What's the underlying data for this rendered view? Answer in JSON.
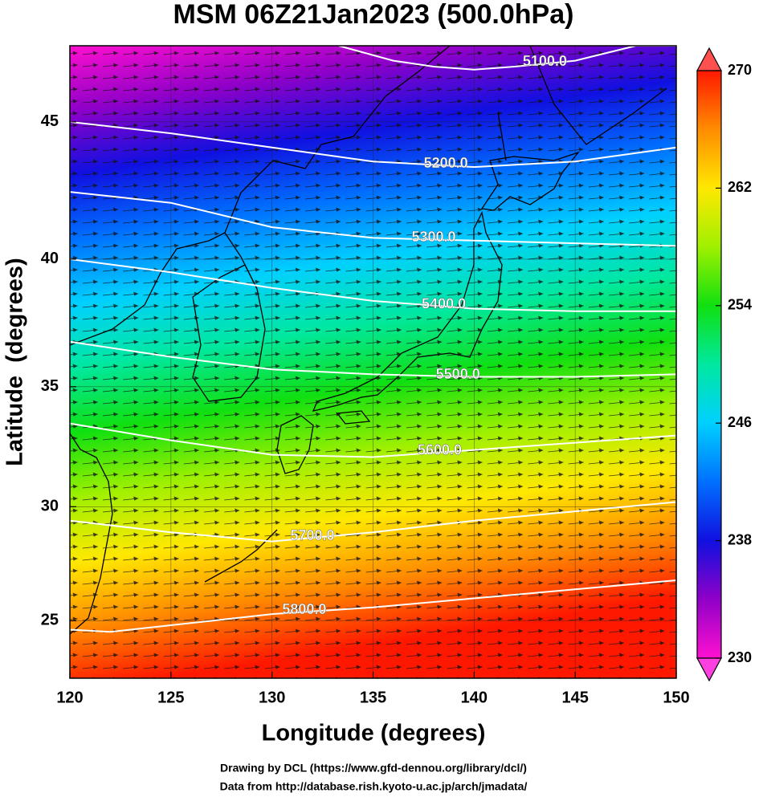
{
  "chart_data": {
    "type": "map",
    "title": "MSM 06Z21Jan2023 (500.0hPa)",
    "x_label": "Longitude (degrees)",
    "y_label": "Latitude  (degrees)",
    "projection": "mercator",
    "xlim": [
      120,
      150
    ],
    "ylim": [
      22.4,
      47.6
    ],
    "xticks": [
      120,
      125,
      130,
      135,
      140,
      145,
      150
    ],
    "yticks": [
      25,
      30,
      35,
      40,
      45
    ],
    "grid": true,
    "contour_color": "#ffffff",
    "contours": [
      {
        "level": {
          "value": 5100,
          "label": "5100.0"
        },
        "lon": [
          133.3,
          136,
          138,
          140,
          142,
          145,
          148,
          150
        ],
        "lat": [
          47.6,
          47.1,
          46.9,
          46.8,
          46.9,
          47.1,
          47.6,
          47.6
        ]
      },
      {
        "level": {
          "value": 5200,
          "label": "5200.0"
        },
        "lon": [
          120,
          125,
          130,
          135,
          140,
          145,
          150
        ],
        "lat": [
          45,
          44.6,
          44.1,
          43.6,
          43.4,
          43.6,
          44.1
        ]
      },
      {
        "level": {
          "value": 5300,
          "label": "5300.0"
        },
        "lon": [
          120,
          125,
          130,
          135,
          140,
          145,
          150
        ],
        "lat": [
          42.5,
          42.1,
          41.2,
          40.8,
          40.7,
          40.6,
          40.5
        ]
      },
      {
        "level": {
          "value": 5400,
          "label": "5400.0"
        },
        "lon": [
          120,
          125,
          130,
          135,
          140,
          145,
          150
        ],
        "lat": [
          40,
          39.5,
          38.9,
          38.4,
          38.1,
          38,
          38
        ]
      },
      {
        "level": {
          "value": 5500,
          "label": "5500.0"
        },
        "lon": [
          120,
          125,
          130,
          135,
          140,
          145,
          150
        ],
        "lat": [
          36.8,
          36.2,
          35.7,
          35.5,
          35.4,
          35.4,
          35.5
        ]
      },
      {
        "level": {
          "value": 5600,
          "label": "5600.0"
        },
        "lon": [
          120,
          125,
          130,
          135,
          140,
          145,
          150
        ],
        "lat": [
          33.5,
          32.8,
          32.2,
          32.1,
          32.4,
          32.7,
          33
        ]
      },
      {
        "level": {
          "value": 5700,
          "label": "5700.0"
        },
        "lon": [
          120,
          125,
          130,
          135,
          140,
          145,
          150
        ],
        "lat": [
          29.4,
          28.9,
          28.5,
          28.9,
          29.4,
          29.8,
          30.2
        ]
      },
      {
        "level": {
          "value": 5800,
          "label": "5800.0"
        },
        "lon": [
          120,
          122,
          125,
          130,
          135,
          140,
          145,
          150
        ],
        "lat": [
          24.6,
          24.5,
          24.8,
          25.3,
          25.6,
          26,
          26.4,
          26.8
        ]
      }
    ],
    "colorbar": {
      "lim": [
        230,
        270
      ],
      "ticks": [
        230,
        238,
        246,
        254,
        262,
        270
      ],
      "colors": [
        "#ff10d0",
        "#9000c8",
        "#1010e0",
        "#0070ff",
        "#00d0ff",
        "#00e8a0",
        "#10e010",
        "#a0f000",
        "#ffe800",
        "#ff8c00",
        "#ff1800"
      ]
    },
    "footer": [
      "Drawing by DCL (https://www.gfd-dennou.org/library/dcl/)",
      "Data from http://database.rish.kyoto-u.ac.jp/arch/jmadata/"
    ]
  }
}
